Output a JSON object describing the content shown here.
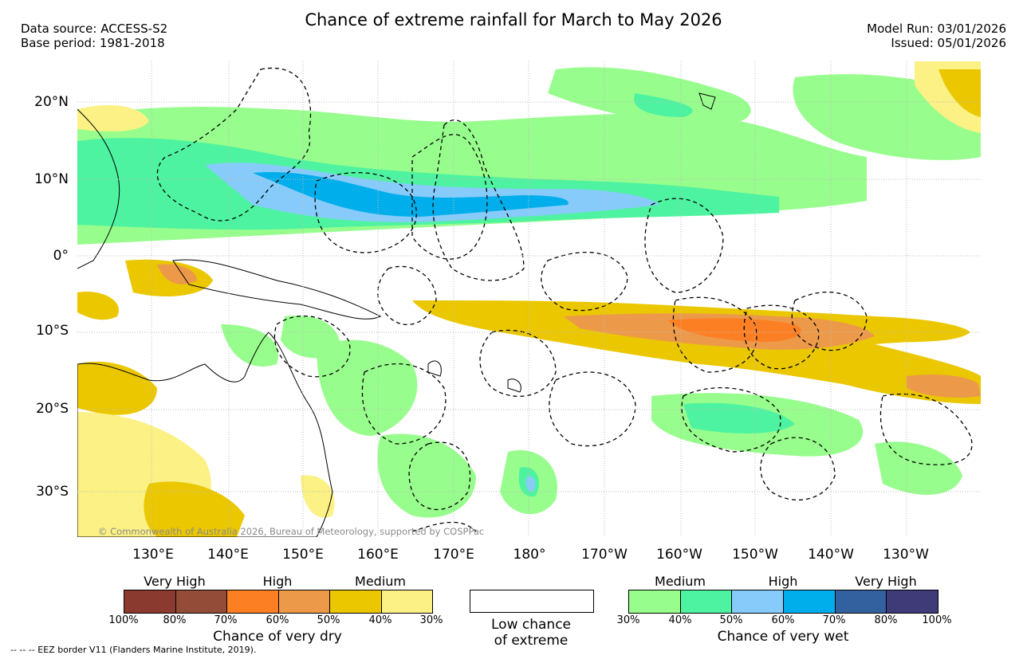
{
  "title": "Chance of extreme rainfall for March to May 2026",
  "header_left": {
    "line1": "Data source: ACCESS-S2",
    "line2": "Base period: 1981-2018"
  },
  "header_right": {
    "line1": "Model Run: 03/01/2026",
    "line2": "Issued: 05/01/2026"
  },
  "lat_labels": [
    "20°N",
    "10°N",
    "0°",
    "10°S",
    "20°S",
    "30°S"
  ],
  "lon_labels": [
    "130°E",
    "140°E",
    "150°E",
    "160°E",
    "170°E",
    "180°",
    "170°W",
    "160°W",
    "150°W",
    "140°W",
    "130°W"
  ],
  "copyright": "© Commonwealth of Australia 2026, Bureau of Meteorology, supported by COSPPac",
  "legend": {
    "dry": {
      "categories": [
        "Very High",
        "High",
        "Medium"
      ],
      "colors": [
        "#8b3a2f",
        "#934c38",
        "#fd7f23",
        "#ec9a49",
        "#ebc700",
        "#fbf185"
      ],
      "ticks": [
        "100%",
        "80%",
        "70%",
        "60%",
        "50%",
        "40%",
        "30%"
      ],
      "caption": "Chance of very dry"
    },
    "low": {
      "line1": "Low chance",
      "line2": "of extreme"
    },
    "wet": {
      "categories": [
        "Medium",
        "High",
        "Very High"
      ],
      "colors": [
        "#97fd8c",
        "#4df3a0",
        "#87cbfb",
        "#00aeeb",
        "#33619f",
        "#3e3b78"
      ],
      "ticks": [
        "30%",
        "40%",
        "50%",
        "60%",
        "70%",
        "80%",
        "100%"
      ],
      "caption": "Chance of very wet"
    }
  },
  "footnote": "--  --  -- EEZ border V11 (Flanders Marine Institute, 2019)."
}
